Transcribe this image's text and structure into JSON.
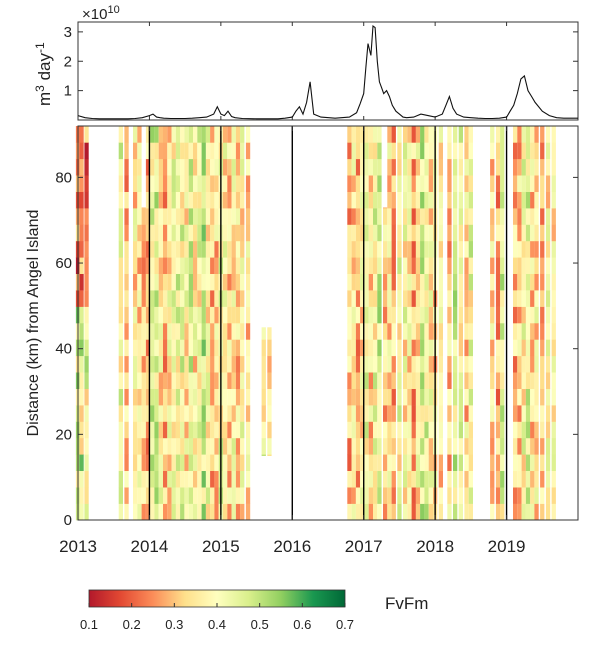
{
  "chart_data": [
    {
      "type": "line",
      "ylabel": "m",
      "ylabel_sup": "3",
      "ylabel_tail": " day",
      "ylabel_sup2": "-1",
      "multiplier": "×10",
      "multiplier_exp": "10",
      "ylim": [
        0,
        3.2
      ],
      "yticks": [
        "1",
        "2",
        "3"
      ],
      "xlim": [
        2013,
        2020
      ],
      "series": [
        {
          "x": [
            2013.0,
            2013.1,
            2013.2,
            2013.3,
            2013.4,
            2013.5,
            2013.6,
            2013.7,
            2013.8,
            2013.9,
            2014.0,
            2014.05,
            2014.1,
            2014.15,
            2014.2,
            2014.3,
            2014.4,
            2014.5,
            2014.6,
            2014.7,
            2014.8,
            2014.9,
            2014.95,
            2015.0,
            2015.05,
            2015.1,
            2015.15,
            2015.2,
            2015.3,
            2015.5,
            2015.7,
            2015.8,
            2015.9,
            2016.0,
            2016.05,
            2016.1,
            2016.15,
            2016.2,
            2016.25,
            2016.3,
            2016.4,
            2016.6,
            2016.8,
            2016.9,
            2016.95,
            2017.0,
            2017.03,
            2017.06,
            2017.1,
            2017.13,
            2017.16,
            2017.19,
            2017.22,
            2017.25,
            2017.28,
            2017.32,
            2017.36,
            2017.4,
            2017.45,
            2017.5,
            2017.55,
            2017.6,
            2017.7,
            2017.8,
            2017.9,
            2018.0,
            2018.1,
            2018.15,
            2018.2,
            2018.25,
            2018.3,
            2018.4,
            2018.5,
            2018.6,
            2018.7,
            2018.8,
            2018.9,
            2019.0,
            2019.05,
            2019.1,
            2019.15,
            2019.2,
            2019.25,
            2019.3,
            2019.35,
            2019.4,
            2019.5,
            2019.6,
            2019.7,
            2019.8,
            2019.9,
            2020.0
          ],
          "values": [
            0.15,
            0.08,
            0.05,
            0.04,
            0.04,
            0.04,
            0.04,
            0.04,
            0.05,
            0.08,
            0.15,
            0.2,
            0.1,
            0.08,
            0.06,
            0.05,
            0.05,
            0.05,
            0.06,
            0.08,
            0.1,
            0.2,
            0.45,
            0.2,
            0.15,
            0.3,
            0.12,
            0.08,
            0.05,
            0.04,
            0.04,
            0.04,
            0.06,
            0.1,
            0.3,
            0.45,
            0.2,
            0.6,
            1.3,
            0.2,
            0.1,
            0.06,
            0.1,
            0.25,
            0.55,
            0.9,
            1.8,
            2.6,
            2.2,
            3.2,
            3.15,
            2.0,
            1.3,
            1.1,
            0.9,
            1.0,
            0.8,
            0.5,
            0.3,
            0.2,
            0.1,
            0.08,
            0.1,
            0.2,
            0.15,
            0.1,
            0.2,
            0.5,
            0.8,
            0.4,
            0.2,
            0.1,
            0.08,
            0.06,
            0.05,
            0.05,
            0.06,
            0.1,
            0.3,
            0.5,
            0.9,
            1.4,
            1.5,
            1.0,
            0.8,
            0.6,
            0.3,
            0.15,
            0.08,
            0.06,
            0.06,
            0.06
          ]
        }
      ]
    },
    {
      "type": "heatmap",
      "ylabel": "Distance (km) from Angel Island",
      "ylim": [
        0,
        92
      ],
      "yticks": [
        "0",
        "20",
        "40",
        "60",
        "80"
      ],
      "xlim": [
        2013,
        2020
      ],
      "xticks": [
        "2013",
        "2014",
        "2015",
        "2016",
        "2017",
        "2018",
        "2019"
      ],
      "year_lines": [
        2014,
        2015,
        2016,
        2017,
        2018,
        2019
      ],
      "colorbar_label": "FvFm",
      "colorbar_ticks": [
        "0.1",
        "0.2",
        "0.3",
        "0.4",
        "0.5",
        "0.6",
        "0.7"
      ],
      "clim": [
        0.1,
        0.7
      ],
      "colors": [
        "#b2182b",
        "#e34a33",
        "#fc8d59",
        "#fee08b",
        "#ffffbf",
        "#d9ef8b",
        "#91cf60",
        "#1a9850",
        "#006837"
      ],
      "cruise_times": [
        2013.0,
        2013.05,
        2013.12,
        2013.6,
        2013.68,
        2013.8,
        2013.86,
        2013.92,
        2013.98,
        2014.04,
        2014.1,
        2014.16,
        2014.22,
        2014.28,
        2014.34,
        2014.4,
        2014.46,
        2014.52,
        2014.58,
        2014.64,
        2014.7,
        2014.76,
        2014.82,
        2014.88,
        2014.94,
        2015.0,
        2015.06,
        2015.12,
        2015.18,
        2015.24,
        2015.3,
        2015.38,
        2015.6,
        2015.68,
        2016.8,
        2016.86,
        2016.92,
        2016.98,
        2017.04,
        2017.1,
        2017.16,
        2017.22,
        2017.3,
        2017.36,
        2017.42,
        2017.5,
        2017.58,
        2017.64,
        2017.7,
        2017.76,
        2017.82,
        2017.88,
        2017.94,
        2018.0,
        2018.08,
        2018.2,
        2018.28,
        2018.36,
        2018.44,
        2018.5,
        2018.8,
        2018.88,
        2018.94,
        2019.12,
        2019.18,
        2019.24,
        2019.3,
        2019.36,
        2019.42,
        2019.5,
        2019.58,
        2019.66
      ],
      "cruise_top_km": [
        92,
        92,
        92,
        92,
        92,
        92,
        92,
        73,
        92,
        92,
        92,
        92,
        92,
        92,
        92,
        92,
        92,
        92,
        92,
        92,
        92,
        92,
        92,
        92,
        92,
        92,
        92,
        92,
        92,
        92,
        92,
        92,
        45,
        45,
        92,
        92,
        92,
        92,
        92,
        92,
        92,
        92,
        73,
        92,
        92,
        92,
        92,
        92,
        92,
        92,
        92,
        92,
        92,
        92,
        92,
        92,
        92,
        92,
        92,
        92,
        92,
        92,
        92,
        92,
        92,
        92,
        92,
        92,
        92,
        92,
        92,
        92
      ],
      "cruise_bottom_km": [
        0,
        0,
        0,
        0,
        0,
        0,
        0,
        0,
        0,
        0,
        0,
        0,
        0,
        0,
        0,
        0,
        0,
        0,
        0,
        0,
        0,
        0,
        0,
        0,
        0,
        0,
        0,
        0,
        0,
        0,
        0,
        0,
        15,
        15,
        0,
        0,
        0,
        0,
        0,
        0,
        0,
        0,
        0,
        0,
        0,
        0,
        0,
        0,
        0,
        0,
        0,
        0,
        0,
        0,
        0,
        0,
        0,
        0,
        0,
        0,
        0,
        0,
        0,
        0,
        0,
        0,
        0,
        0,
        0,
        0,
        0,
        0
      ]
    }
  ]
}
